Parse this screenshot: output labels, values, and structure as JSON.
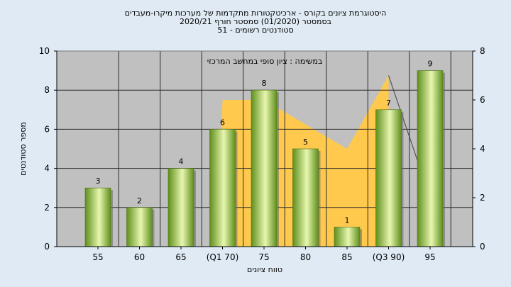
{
  "chart_data": {
    "type": "bar",
    "title_lines": [
      "היסטוגרמת ציונים בקורס - ארכיטקטורות מתקדמות של מערכות מיקרו-מעבדים",
      "בסמסטר  (01/2020)  סמסטר חורף  2020/21",
      "סטודנטים רשומים - 51"
    ],
    "subtitle": "במשימה : ציון סופי במחשב המרכזי",
    "xlabel": "טווח ציונים",
    "ylabel": "מספר סטודנטים",
    "categories": [
      "55",
      "60",
      "65",
      "(Q1 70)",
      "75",
      "80",
      "85",
      "(Q3 90)",
      "95"
    ],
    "values": [
      3,
      2,
      4,
      6,
      8,
      5,
      1,
      7,
      9
    ],
    "ylim": [
      0,
      10
    ],
    "yticks": [
      0,
      2,
      4,
      6,
      8,
      10
    ],
    "y2lim": [
      0,
      8
    ],
    "y2ticks": [
      0,
      2,
      4,
      6,
      8
    ],
    "background_area": {
      "color": "#ffc94d",
      "points": [
        [
          2.85,
          0
        ],
        [
          3.0,
          6
        ],
        [
          4.0,
          6
        ],
        [
          5.0,
          5
        ],
        [
          6.0,
          4
        ],
        [
          7.0,
          7
        ],
        [
          7.0,
          0
        ]
      ]
    },
    "background_line": {
      "color": "#555555",
      "points": [
        [
          7.0,
          7
        ],
        [
          8.0,
          2
        ]
      ]
    },
    "bar_colors": [
      "#5f8f1c",
      "#e8f7b0"
    ],
    "plot_background": "#c0c0c0",
    "page_background": "#dfeaf4",
    "grid": true
  }
}
